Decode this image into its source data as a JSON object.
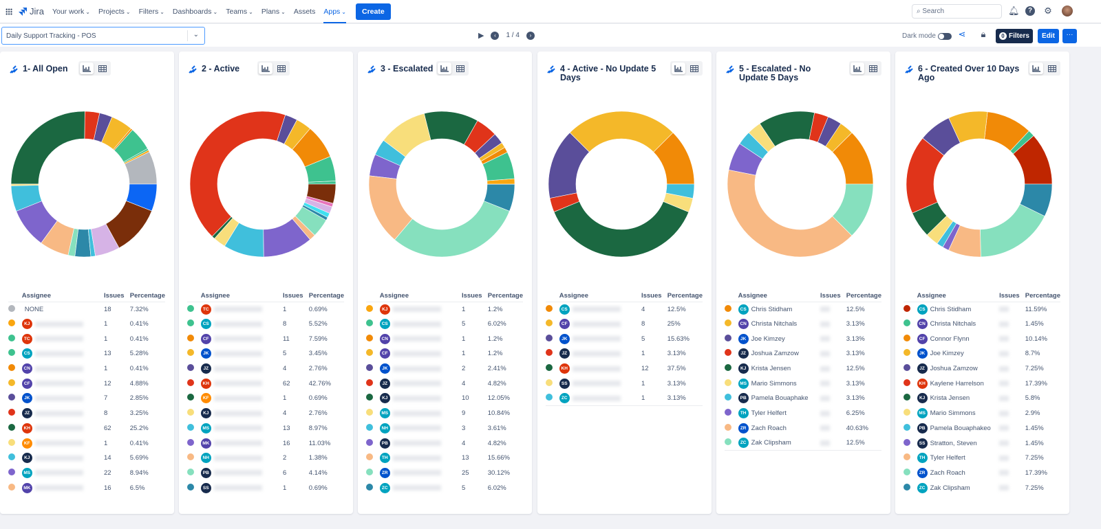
{
  "nav": {
    "app": "Jira",
    "items": [
      "Your work",
      "Projects",
      "Filters",
      "Dashboards",
      "Teams",
      "Plans",
      "Assets",
      "Apps"
    ],
    "active": "Apps",
    "create": "Create",
    "search_placeholder": "Search"
  },
  "toolbar": {
    "dashboard": "Daily Support Tracking - POS",
    "page": "1 / 4",
    "dark_mode": "Dark mode",
    "filters_count": "0",
    "filters": "Filters",
    "edit": "Edit",
    "more": "···"
  },
  "table_headers": {
    "assignee": "Assignee",
    "issues": "Issues",
    "percentage": "Percentage"
  },
  "colors": {
    "accent": "#0C66E4",
    "navy": "#172B4D"
  },
  "panels": [
    {
      "title": "1- All Open",
      "rows": [
        {
          "color": "#B3B7BD",
          "name": "NONE",
          "issues": "18",
          "pct": "7.32%"
        },
        {
          "color": "#FAA60F",
          "initials": "KJ",
          "av": "#DE350B",
          "issues": "1",
          "pct": "0.41%"
        },
        {
          "color": "#3EC28F",
          "initials": "TC",
          "av": "#DE350B",
          "issues": "1",
          "pct": "0.41%"
        },
        {
          "color": "#3EC28F",
          "initials": "CS",
          "av": "#00A3BF",
          "issues": "13",
          "pct": "5.28%"
        },
        {
          "color": "#F18A07",
          "initials": "CN",
          "av": "#5243AA",
          "issues": "1",
          "pct": "0.41%"
        },
        {
          "color": "#F4B829",
          "initials": "CF",
          "av": "#5243AA",
          "issues": "12",
          "pct": "4.88%"
        },
        {
          "color": "#5A4E9A",
          "initials": "JK",
          "av": "#0052CC",
          "issues": "7",
          "pct": "2.85%"
        },
        {
          "color": "#E0341A",
          "initials": "JZ",
          "av": "#172B4D",
          "issues": "8",
          "pct": "3.25%"
        },
        {
          "color": "#1B6841",
          "initials": "KH",
          "av": "#DE350B",
          "issues": "62",
          "pct": "25.2%"
        },
        {
          "color": "#F8DE7B",
          "initials": "KF",
          "av": "#FF8B00",
          "issues": "1",
          "pct": "0.41%"
        },
        {
          "color": "#40BFDC",
          "initials": "KJ",
          "av": "#172B4D",
          "issues": "14",
          "pct": "5.69%"
        },
        {
          "color": "#7E65CC",
          "initials": "MS",
          "av": "#00A3BF",
          "issues": "22",
          "pct": "8.94%"
        },
        {
          "color": "#F8B984",
          "initials": "MK",
          "av": "#5243AA",
          "issues": "16",
          "pct": "6.5%"
        }
      ],
      "extra_slices": [
        {
          "color": "#86E0BE",
          "pct": 1.5
        },
        {
          "color": "#2C88A8",
          "pct": 3.5
        },
        {
          "color": "#40BFDC",
          "pct": 1
        },
        {
          "color": "#D6B3E6",
          "pct": 5.5
        },
        {
          "color": "#7A2E0A",
          "pct": 11
        },
        {
          "color": "#0C66F4",
          "pct": 6
        }
      ]
    },
    {
      "title": "2 - Active",
      "rows": [
        {
          "color": "#3EC28F",
          "initials": "TC",
          "av": "#DE350B",
          "issues": "1",
          "pct": "0.69%"
        },
        {
          "color": "#3EC28F",
          "initials": "CS",
          "av": "#00A3BF",
          "issues": "8",
          "pct": "5.52%"
        },
        {
          "color": "#F18A07",
          "initials": "CF",
          "av": "#5243AA",
          "issues": "11",
          "pct": "7.59%"
        },
        {
          "color": "#F4B829",
          "initials": "JK",
          "av": "#0052CC",
          "issues": "5",
          "pct": "3.45%"
        },
        {
          "color": "#5A4E9A",
          "initials": "JZ",
          "av": "#172B4D",
          "issues": "4",
          "pct": "2.76%"
        },
        {
          "color": "#E0341A",
          "initials": "KH",
          "av": "#DE350B",
          "issues": "62",
          "pct": "42.76%"
        },
        {
          "color": "#1B6841",
          "initials": "KF",
          "av": "#FF8B00",
          "issues": "1",
          "pct": "0.69%"
        },
        {
          "color": "#F8DE7B",
          "initials": "KJ",
          "av": "#172B4D",
          "issues": "4",
          "pct": "2.76%"
        },
        {
          "color": "#40BFDC",
          "initials": "MS",
          "av": "#00A3BF",
          "issues": "13",
          "pct": "8.97%"
        },
        {
          "color": "#7E65CC",
          "initials": "MK",
          "av": "#5243AA",
          "issues": "16",
          "pct": "11.03%"
        },
        {
          "color": "#F8B984",
          "initials": "NH",
          "av": "#00A3BF",
          "issues": "2",
          "pct": "1.38%"
        },
        {
          "color": "#86E0BE",
          "initials": "PB",
          "av": "#172B4D",
          "issues": "6",
          "pct": "4.14%"
        },
        {
          "color": "#2C88A8",
          "initials": "SS",
          "av": "#172B4D",
          "issues": "1",
          "pct": "0.69%"
        }
      ],
      "extra_slices": [
        {
          "color": "#40E0F0",
          "pct": 1
        },
        {
          "color": "#D6B3E6",
          "pct": 1.5
        },
        {
          "color": "#E774BB",
          "pct": 0.8
        },
        {
          "color": "#7A2E0A",
          "pct": 4.27
        }
      ]
    },
    {
      "title": "3 - Escalated",
      "rows": [
        {
          "color": "#FAA60F",
          "initials": "KJ",
          "av": "#DE350B",
          "issues": "1",
          "pct": "1.2%"
        },
        {
          "color": "#3EC28F",
          "initials": "CS",
          "av": "#00A3BF",
          "issues": "5",
          "pct": "6.02%"
        },
        {
          "color": "#F18A07",
          "initials": "CN",
          "av": "#5243AA",
          "issues": "1",
          "pct": "1.2%"
        },
        {
          "color": "#F4B829",
          "initials": "CF",
          "av": "#5243AA",
          "issues": "1",
          "pct": "1.2%"
        },
        {
          "color": "#5A4E9A",
          "initials": "JK",
          "av": "#0052CC",
          "issues": "2",
          "pct": "2.41%"
        },
        {
          "color": "#E0341A",
          "initials": "JZ",
          "av": "#172B4D",
          "issues": "4",
          "pct": "4.82%"
        },
        {
          "color": "#1B6841",
          "initials": "KJ",
          "av": "#172B4D",
          "issues": "10",
          "pct": "12.05%"
        },
        {
          "color": "#F8DE7B",
          "initials": "MS",
          "av": "#00A3BF",
          "issues": "9",
          "pct": "10.84%"
        },
        {
          "color": "#40BFDC",
          "initials": "NH",
          "av": "#00A3BF",
          "issues": "3",
          "pct": "3.61%"
        },
        {
          "color": "#7E65CC",
          "initials": "PB",
          "av": "#172B4D",
          "issues": "4",
          "pct": "4.82%"
        },
        {
          "color": "#F8B984",
          "initials": "TH",
          "av": "#00A3BF",
          "issues": "13",
          "pct": "15.66%"
        },
        {
          "color": "#86E0BE",
          "initials": "ZR",
          "av": "#0052CC",
          "issues": "25",
          "pct": "30.12%"
        },
        {
          "color": "#2C88A8",
          "initials": "ZC",
          "av": "#00A3BF",
          "issues": "5",
          "pct": "6.02%"
        }
      ]
    },
    {
      "title": "4 - Active - No Update 5 Days",
      "rows": [
        {
          "color": "#F18A07",
          "initials": "CS",
          "av": "#00A3BF",
          "issues": "4",
          "pct": "12.5%"
        },
        {
          "color": "#F4B829",
          "initials": "CF",
          "av": "#5243AA",
          "issues": "8",
          "pct": "25%"
        },
        {
          "color": "#5A4E9A",
          "initials": "JK",
          "av": "#0052CC",
          "issues": "5",
          "pct": "15.63%"
        },
        {
          "color": "#E0341A",
          "initials": "JZ",
          "av": "#172B4D",
          "issues": "1",
          "pct": "3.13%"
        },
        {
          "color": "#1B6841",
          "initials": "KH",
          "av": "#DE350B",
          "issues": "12",
          "pct": "37.5%"
        },
        {
          "color": "#F8DE7B",
          "initials": "SS",
          "av": "#172B4D",
          "issues": "1",
          "pct": "3.13%"
        },
        {
          "color": "#40BFDC",
          "initials": "ZC",
          "av": "#00A3BF",
          "issues": "1",
          "pct": "3.13%"
        }
      ]
    },
    {
      "title": "5 - Escalated - No Update 5 Days",
      "rows": [
        {
          "color": "#F18A07",
          "initials": "CS",
          "av": "#00A3BF",
          "name": "Chris Stidham",
          "pct": "12.5%"
        },
        {
          "color": "#F4B829",
          "initials": "CN",
          "av": "#5243AA",
          "name": "Christa Nitchals",
          "pct": "3.13%"
        },
        {
          "color": "#5A4E9A",
          "initials": "JK",
          "av": "#0052CC",
          "name": "Joe Kimzey",
          "pct": "3.13%"
        },
        {
          "color": "#E0341A",
          "initials": "JZ",
          "av": "#172B4D",
          "name": "Joshua Zamzow",
          "pct": "3.13%"
        },
        {
          "color": "#1B6841",
          "initials": "KJ",
          "av": "#172B4D",
          "name": "Krista Jensen",
          "pct": "12.5%"
        },
        {
          "color": "#F8DE7B",
          "initials": "MS",
          "av": "#00A3BF",
          "name": "Mario Simmons",
          "pct": "3.13%"
        },
        {
          "color": "#40BFDC",
          "initials": "PB",
          "av": "#172B4D",
          "name": "Pamela Bouaphake",
          "pct": "3.13%"
        },
        {
          "color": "#7E65CC",
          "initials": "TH",
          "av": "#00A3BF",
          "name": "Tyler Helfert",
          "pct": "6.25%"
        },
        {
          "color": "#F8B984",
          "initials": "ZR",
          "av": "#0052CC",
          "name": "Zach Roach",
          "pct": "40.63%"
        },
        {
          "color": "#86E0BE",
          "initials": "ZC",
          "av": "#00A3BF",
          "name": "Zak Clipsham",
          "pct": "12.5%"
        }
      ]
    },
    {
      "title": "6 - Created Over 10 Days Ago",
      "rows": [
        {
          "color": "#BF2600",
          "initials": "CS",
          "av": "#00A3BF",
          "name": "Chris Stidham",
          "pct": "11.59%"
        },
        {
          "color": "#3EC28F",
          "initials": "CN",
          "av": "#5243AA",
          "name": "Christa Nitchals",
          "pct": "1.45%"
        },
        {
          "color": "#F18A07",
          "initials": "CF",
          "av": "#5243AA",
          "name": "Connor Flynn",
          "pct": "10.14%"
        },
        {
          "color": "#F4B829",
          "initials": "JK",
          "av": "#0052CC",
          "name": "Joe Kimzey",
          "pct": "8.7%"
        },
        {
          "color": "#5A4E9A",
          "initials": "JZ",
          "av": "#172B4D",
          "name": "Joshua Zamzow",
          "pct": "7.25%"
        },
        {
          "color": "#E0341A",
          "initials": "KH",
          "av": "#DE350B",
          "name": "Kaylene Harrelson",
          "pct": "17.39%"
        },
        {
          "color": "#1B6841",
          "initials": "KJ",
          "av": "#172B4D",
          "name": "Krista Jensen",
          "pct": "5.8%"
        },
        {
          "color": "#F8DE7B",
          "initials": "MS",
          "av": "#00A3BF",
          "name": "Mario Simmons",
          "pct": "2.9%"
        },
        {
          "color": "#40BFDC",
          "initials": "PB",
          "av": "#172B4D",
          "name": "Pamela Bouaphakeo",
          "pct": "1.45%"
        },
        {
          "color": "#7E65CC",
          "initials": "SS",
          "av": "#172B4D",
          "name": "Stratton, Steven",
          "pct": "1.45%"
        },
        {
          "color": "#F8B984",
          "initials": "TH",
          "av": "#00A3BF",
          "name": "Tyler Helfert",
          "pct": "7.25%"
        },
        {
          "color": "#86E0BE",
          "initials": "ZR",
          "av": "#0052CC",
          "name": "Zach Roach",
          "pct": "17.39%"
        },
        {
          "color": "#2C88A8",
          "initials": "ZC",
          "av": "#00A3BF",
          "name": "Zak Clipsham",
          "pct": "7.25%"
        }
      ]
    }
  ]
}
